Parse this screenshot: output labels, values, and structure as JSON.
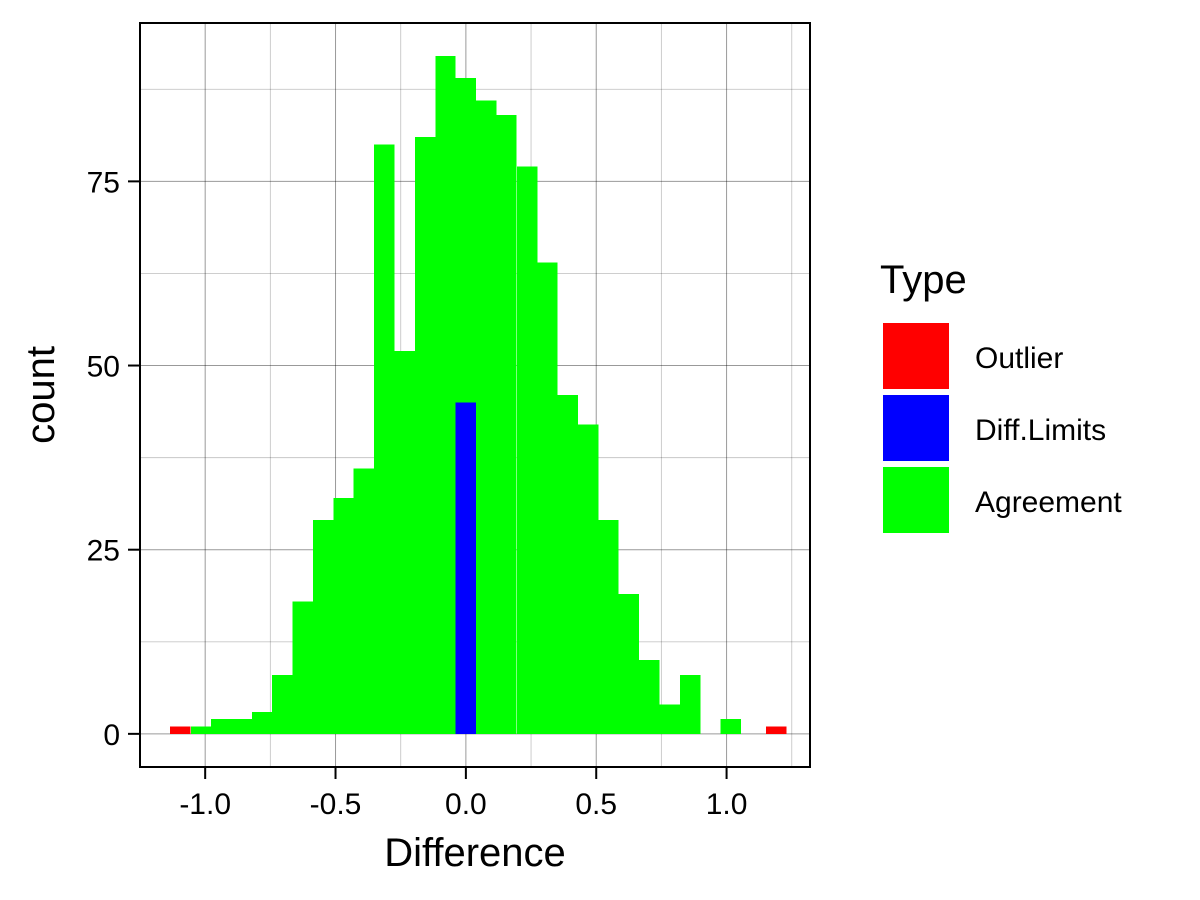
{
  "chart_data": {
    "type": "bar",
    "title": "",
    "xlabel": "Difference",
    "ylabel": "count",
    "xlim": [
      -1.25,
      1.32
    ],
    "ylim": [
      -4.5,
      96.5
    ],
    "x_ticks": [
      -1.0,
      -0.5,
      0.0,
      0.5,
      1.0
    ],
    "x_tick_labels": [
      "-1.0",
      "-0.5",
      "0.0",
      "0.5",
      "1.0"
    ],
    "y_ticks": [
      0,
      25,
      50,
      75
    ],
    "y_tick_labels": [
      "0",
      "25",
      "50",
      "75"
    ],
    "grid": true,
    "legend_position": "right",
    "bin_width": 0.0782,
    "legend": {
      "title": "Type",
      "items": [
        {
          "key": "outlier",
          "label": "Outlier",
          "color": "#ff0000"
        },
        {
          "key": "difflimits",
          "label": "Diff.Limits",
          "color": "#0000ff"
        },
        {
          "key": "agreement",
          "label": "Agreement",
          "color": "#00ff00"
        }
      ]
    },
    "series": [
      {
        "name": "Outlier",
        "color": "#ff0000",
        "bins": [
          {
            "x": -1.095,
            "count": 1
          },
          {
            "x": 1.19,
            "count": 1
          }
        ]
      },
      {
        "name": "Diff.Limits",
        "color": "#0000ff",
        "bins": [
          {
            "x": 0.0,
            "count": 45
          }
        ]
      },
      {
        "name": "Agreement",
        "color": "#00ff00",
        "bins": [
          {
            "x": -1.016,
            "count": 1
          },
          {
            "x": -0.938,
            "count": 2
          },
          {
            "x": -0.86,
            "count": 2
          },
          {
            "x": -0.782,
            "count": 3
          },
          {
            "x": -0.704,
            "count": 8
          },
          {
            "x": -0.625,
            "count": 18
          },
          {
            "x": -0.547,
            "count": 29
          },
          {
            "x": -0.469,
            "count": 32
          },
          {
            "x": -0.391,
            "count": 36
          },
          {
            "x": -0.313,
            "count": 80
          },
          {
            "x": -0.235,
            "count": 52
          },
          {
            "x": -0.156,
            "count": 81
          },
          {
            "x": -0.078,
            "count": 92
          },
          {
            "x": 0.0,
            "count": 89
          },
          {
            "x": 0.078,
            "count": 86
          },
          {
            "x": 0.156,
            "count": 84
          },
          {
            "x": 0.235,
            "count": 77
          },
          {
            "x": 0.313,
            "count": 64
          },
          {
            "x": 0.391,
            "count": 46
          },
          {
            "x": 0.469,
            "count": 42
          },
          {
            "x": 0.547,
            "count": 29
          },
          {
            "x": 0.625,
            "count": 19
          },
          {
            "x": 0.704,
            "count": 10
          },
          {
            "x": 0.782,
            "count": 4
          },
          {
            "x": 0.86,
            "count": 8
          },
          {
            "x": 1.016,
            "count": 2
          }
        ]
      }
    ]
  }
}
